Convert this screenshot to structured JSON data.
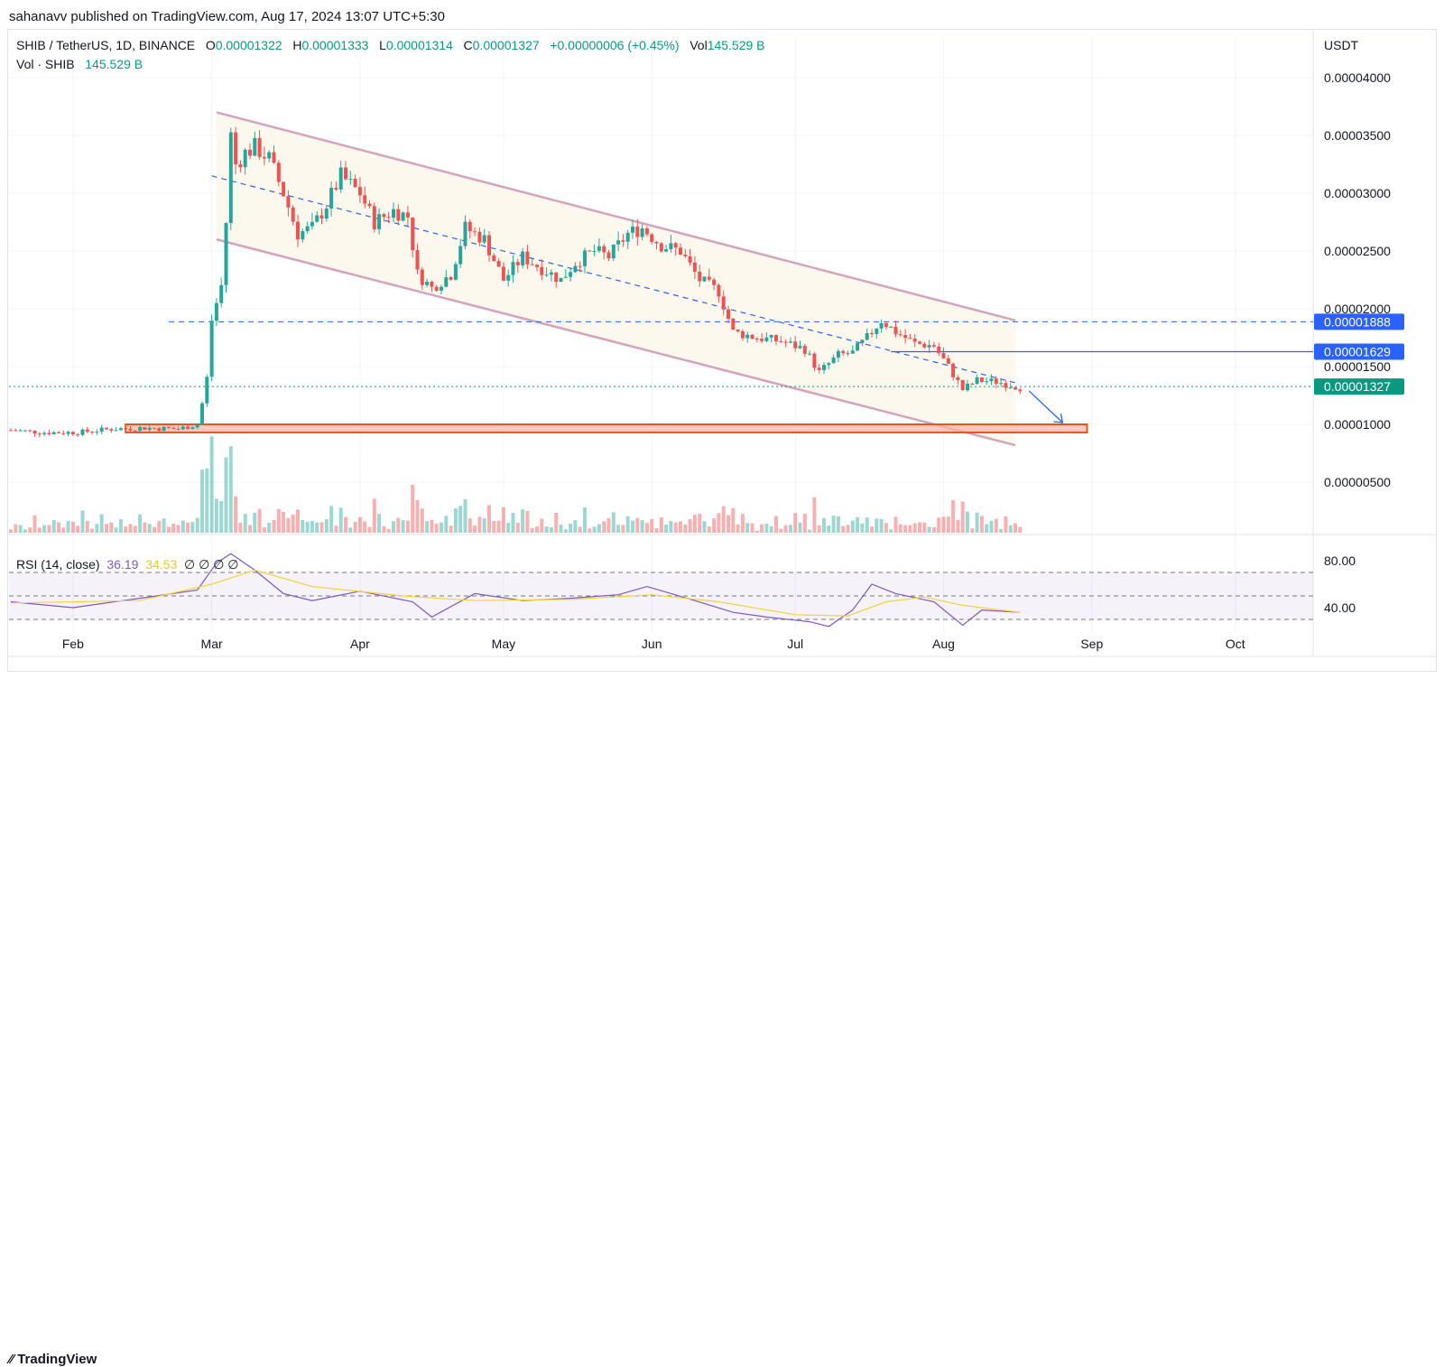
{
  "header": {
    "published": "sahanavv published on TradingView.com, Aug 17, 2024 13:07 UTC+5:30"
  },
  "legend": {
    "symbol": "SHIB / TetherUS, 1D, BINANCE",
    "o_label": "O",
    "o_value": "0.00001322",
    "h_label": "H",
    "h_value": "0.00001333",
    "l_label": "L",
    "l_value": "0.00001314",
    "c_label": "C",
    "c_value": "0.00001327",
    "change": "+0.00000006 (+0.45%)",
    "vol_label": "Vol",
    "vol_value": "145.529 B",
    "vol_line_label": "Vol · SHIB",
    "vol_line_value": "145.529 B"
  },
  "rsi_legend": {
    "label": "RSI (14, close)",
    "value1": "36.19",
    "value2": "34.53",
    "markers": "∅ ∅ ∅ ∅"
  },
  "footer": {
    "logo": "TradingView"
  },
  "colors": {
    "up": "#26a69a",
    "down": "#ef5350",
    "channel": "#d5a3be",
    "channel_fill": "#fdf8ed",
    "blue": "#2962ff",
    "rsi": "#7e57c2",
    "rsi_ma": "#f5d33a",
    "zone_fill": "#f4b6a4",
    "zone_stroke": "#e8541e",
    "current_price_bg": "#089981",
    "level_bg": "#2962ff"
  },
  "chart_data": {
    "type": "candlestick",
    "title": "SHIB / TetherUS, 1D, BINANCE",
    "quote_currency": "USDT",
    "y_ticks": [
      "0.00004000",
      "0.00003500",
      "0.00003000",
      "0.00002500",
      "0.00002000",
      "0.00001500",
      "0.00001000",
      "0.00000500"
    ],
    "y_tick_values": [
      4e-05,
      3.5e-05,
      3e-05,
      2.5e-05,
      2e-05,
      1.5e-05,
      1e-05,
      5e-06
    ],
    "x_ticks": [
      "Feb",
      "Mar",
      "Apr",
      "May",
      "Jun",
      "Jul",
      "Aug",
      "Sep",
      "Oct"
    ],
    "x_tick_dates": [
      "2024-02-01",
      "2024-03-01",
      "2024-04-01",
      "2024-05-01",
      "2024-06-01",
      "2024-07-01",
      "2024-08-01",
      "2024-09-01",
      "2024-10-01"
    ],
    "date_range": [
      "2024-01-19",
      "2024-08-17"
    ],
    "price_labels": [
      {
        "text": "0.00001888",
        "value": 1.888e-05,
        "style": "blue"
      },
      {
        "text": "0.00001629",
        "value": 1.629e-05,
        "style": "blue"
      },
      {
        "text": "0.00001327",
        "value": 1.327e-05,
        "style": "green"
      }
    ],
    "price_path": [
      [
        "2024-01-19",
        9.5e-06
      ],
      [
        "2024-01-26",
        9.3e-06
      ],
      [
        "2024-02-02",
        9.3e-06
      ],
      [
        "2024-02-09",
        9.6e-06
      ],
      [
        "2024-02-16",
        9.7e-06
      ],
      [
        "2024-02-23",
        9.6e-06
      ],
      [
        "2024-02-27",
        1e-05
      ],
      [
        "2024-02-28",
        1.18e-05
      ],
      [
        "2024-02-29",
        1.4e-05
      ],
      [
        "2024-03-01",
        1.9e-05
      ],
      [
        "2024-03-03",
        2.2e-05
      ],
      [
        "2024-03-04",
        2.75e-05
      ],
      [
        "2024-03-05",
        3.5e-05
      ],
      [
        "2024-03-06",
        3.25e-05
      ],
      [
        "2024-03-08",
        3.35e-05
      ],
      [
        "2024-03-10",
        3.4e-05
      ],
      [
        "2024-03-13",
        3.3e-05
      ],
      [
        "2024-03-16",
        3e-05
      ],
      [
        "2024-03-19",
        2.65e-05
      ],
      [
        "2024-03-22",
        2.7e-05
      ],
      [
        "2024-03-25",
        2.9e-05
      ],
      [
        "2024-03-28",
        3.15e-05
      ],
      [
        "2024-04-01",
        3e-05
      ],
      [
        "2024-04-04",
        2.75e-05
      ],
      [
        "2024-04-08",
        2.85e-05
      ],
      [
        "2024-04-11",
        2.8e-05
      ],
      [
        "2024-04-13",
        2.3e-05
      ],
      [
        "2024-04-16",
        2.18e-05
      ],
      [
        "2024-04-20",
        2.3e-05
      ],
      [
        "2024-04-23",
        2.7e-05
      ],
      [
        "2024-04-27",
        2.6e-05
      ],
      [
        "2024-05-01",
        2.25e-05
      ],
      [
        "2024-05-05",
        2.45e-05
      ],
      [
        "2024-05-09",
        2.35e-05
      ],
      [
        "2024-05-13",
        2.25e-05
      ],
      [
        "2024-05-16",
        2.4e-05
      ],
      [
        "2024-05-20",
        2.5e-05
      ],
      [
        "2024-05-23",
        2.45e-05
      ],
      [
        "2024-05-27",
        2.65e-05
      ],
      [
        "2024-05-30",
        2.7e-05
      ],
      [
        "2024-06-03",
        2.55e-05
      ],
      [
        "2024-06-07",
        2.5e-05
      ],
      [
        "2024-06-11",
        2.25e-05
      ],
      [
        "2024-06-15",
        2.15e-05
      ],
      [
        "2024-06-18",
        1.8e-05
      ],
      [
        "2024-06-23",
        1.75e-05
      ],
      [
        "2024-06-28",
        1.72e-05
      ],
      [
        "2024-07-03",
        1.65e-05
      ],
      [
        "2024-07-06",
        1.45e-05
      ],
      [
        "2024-07-10",
        1.6e-05
      ],
      [
        "2024-07-13",
        1.62e-05
      ],
      [
        "2024-07-16",
        1.75e-05
      ],
      [
        "2024-07-19",
        1.9e-05
      ],
      [
        "2024-07-22",
        1.8e-05
      ],
      [
        "2024-07-26",
        1.7e-05
      ],
      [
        "2024-07-30",
        1.68e-05
      ],
      [
        "2024-08-02",
        1.5e-05
      ],
      [
        "2024-08-05",
        1.3e-05
      ],
      [
        "2024-08-08",
        1.38e-05
      ],
      [
        "2024-08-12",
        1.37e-05
      ],
      [
        "2024-08-17",
        1.32e-05
      ]
    ],
    "channel_upper": [
      [
        "2024-03-02",
        3.7e-05
      ],
      [
        "2024-08-16",
        1.9e-05
      ]
    ],
    "channel_lower": [
      [
        "2024-03-02",
        2.6e-05
      ],
      [
        "2024-08-16",
        8.2e-06
      ]
    ],
    "midline": [
      [
        "2024-03-01",
        3.15e-05
      ],
      [
        "2024-08-16",
        1.36e-05
      ]
    ],
    "support_zone": {
      "from": "2024-02-12",
      "to": "2024-08-31",
      "low": 9.3e-06,
      "high": 1e-05
    },
    "forecast_arrow": [
      [
        "2024-08-17",
        1.32e-05
      ],
      [
        "2024-08-24",
        1e-05
      ]
    ],
    "rsi_ticks": [
      "80.00",
      "40.00"
    ],
    "rsi_tick_values": [
      80,
      40
    ],
    "rsi_bands": [
      70,
      50,
      30
    ],
    "rsi_path": [
      [
        "2024-01-19",
        45
      ],
      [
        "2024-02-01",
        40
      ],
      [
        "2024-02-15",
        48
      ],
      [
        "2024-02-27",
        55
      ],
      [
        "2024-03-02",
        78
      ],
      [
        "2024-03-05",
        86
      ],
      [
        "2024-03-10",
        72
      ],
      [
        "2024-03-16",
        52
      ],
      [
        "2024-03-22",
        46
      ],
      [
        "2024-04-01",
        54
      ],
      [
        "2024-04-12",
        45
      ],
      [
        "2024-04-16",
        32
      ],
      [
        "2024-04-25",
        52
      ],
      [
        "2024-05-05",
        46
      ],
      [
        "2024-05-15",
        48
      ],
      [
        "2024-05-25",
        51
      ],
      [
        "2024-05-31",
        58
      ],
      [
        "2024-06-10",
        46
      ],
      [
        "2024-06-18",
        36
      ],
      [
        "2024-06-25",
        32
      ],
      [
        "2024-07-04",
        28
      ],
      [
        "2024-07-08",
        24
      ],
      [
        "2024-07-13",
        38
      ],
      [
        "2024-07-17",
        60
      ],
      [
        "2024-07-22",
        52
      ],
      [
        "2024-07-30",
        45
      ],
      [
        "2024-08-05",
        25
      ],
      [
        "2024-08-09",
        38
      ],
      [
        "2024-08-17",
        36
      ]
    ],
    "rsi_ma_path": [
      [
        "2024-01-19",
        44
      ],
      [
        "2024-02-15",
        46
      ],
      [
        "2024-03-01",
        60
      ],
      [
        "2024-03-10",
        72
      ],
      [
        "2024-03-22",
        58
      ],
      [
        "2024-04-10",
        50
      ],
      [
        "2024-04-25",
        46
      ],
      [
        "2024-05-15",
        47
      ],
      [
        "2024-06-01",
        51
      ],
      [
        "2024-06-15",
        45
      ],
      [
        "2024-07-01",
        34
      ],
      [
        "2024-07-12",
        33
      ],
      [
        "2024-07-20",
        45
      ],
      [
        "2024-07-28",
        49
      ],
      [
        "2024-08-05",
        42
      ],
      [
        "2024-08-17",
        36
      ]
    ]
  }
}
